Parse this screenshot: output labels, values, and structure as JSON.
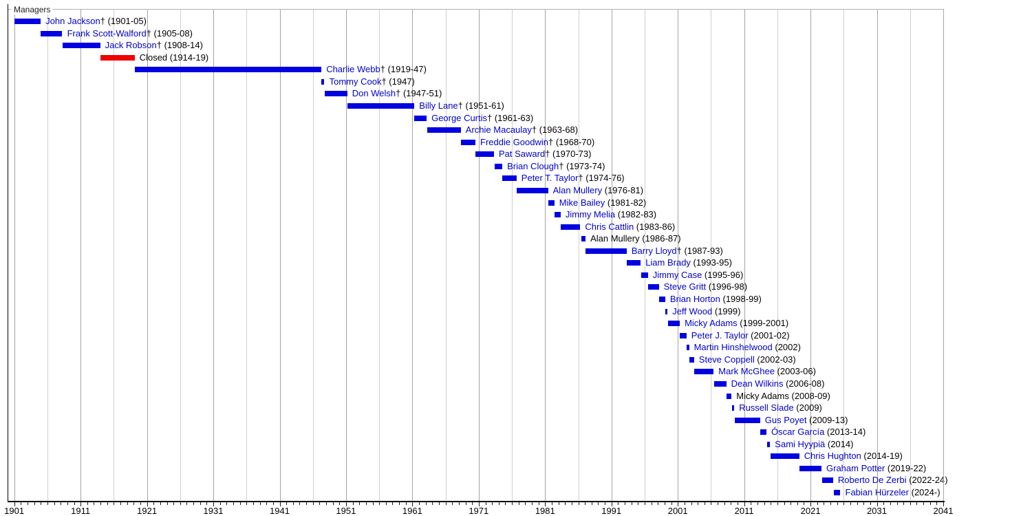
{
  "header": {
    "group_label": "Managers"
  },
  "chart_data": {
    "type": "timeline",
    "title": "Managers",
    "x_axis": {
      "min": 1900,
      "max": 2041,
      "tick_every": 1,
      "gridline_every": 5,
      "label_every": 10,
      "tick_labels": [
        "1901",
        "1911",
        "1921",
        "1931",
        "1941",
        "1951",
        "1961",
        "1971",
        "1981",
        "1991",
        "2001",
        "2011",
        "2021",
        "2031",
        "2041"
      ]
    },
    "colors": {
      "bar": "#0000e0",
      "closed_bar": "#ee0000",
      "link_text": "#0000cc",
      "text": "#000000",
      "grid_major": "#a4a4a4",
      "grid_minor": "#cfcfcf",
      "axis": "#000000"
    },
    "legend_position": "none",
    "grid": true,
    "rows": [
      {
        "name": "John Jackson",
        "dagger": true,
        "years": "1901-05",
        "start": 1901.0,
        "end": 1905.0,
        "color": "blue",
        "link": true
      },
      {
        "name": "Frank Scott-Walford",
        "dagger": true,
        "years": "1905-08",
        "start": 1905.0,
        "end": 1908.25,
        "color": "blue",
        "link": true
      },
      {
        "name": "Jack Robson",
        "dagger": true,
        "years": "1908-14",
        "start": 1908.25,
        "end": 1913.95,
        "color": "blue",
        "link": true
      },
      {
        "name": "Closed",
        "dagger": false,
        "years": "1914-19",
        "start": 1913.95,
        "end": 1919.15,
        "color": "red",
        "link": false
      },
      {
        "name": "Charlie Webb",
        "dagger": true,
        "years": "1919-47",
        "start": 1919.15,
        "end": 1947.3,
        "color": "blue",
        "link": true
      },
      {
        "name": "Tommy Cook",
        "dagger": true,
        "years": "1947",
        "start": 1947.3,
        "end": 1947.75,
        "color": "blue",
        "link": true
      },
      {
        "name": "Don Welsh",
        "dagger": true,
        "years": "1947-51",
        "start": 1947.8,
        "end": 1951.2,
        "color": "blue",
        "link": true
      },
      {
        "name": "Billy Lane",
        "dagger": true,
        "years": "1951-61",
        "start": 1951.2,
        "end": 1961.3,
        "color": "blue",
        "link": true
      },
      {
        "name": "George Curtis",
        "dagger": true,
        "years": "1961-63",
        "start": 1961.3,
        "end": 1963.15,
        "color": "blue",
        "link": true
      },
      {
        "name": "Archie Macaulay",
        "dagger": true,
        "years": "1963-68",
        "start": 1963.2,
        "end": 1968.3,
        "color": "blue",
        "link": true
      },
      {
        "name": "Freddie Goodwin",
        "dagger": true,
        "years": "1968-70",
        "start": 1968.3,
        "end": 1970.5,
        "color": "blue",
        "link": true
      },
      {
        "name": "Pat Saward",
        "dagger": true,
        "years": "1970-73",
        "start": 1970.5,
        "end": 1973.3,
        "color": "blue",
        "link": true
      },
      {
        "name": "Brian Clough",
        "dagger": true,
        "years": "1973-74",
        "start": 1973.4,
        "end": 1974.55,
        "color": "blue",
        "link": true
      },
      {
        "name": "Peter T. Taylor",
        "dagger": true,
        "years": "1974-76",
        "start": 1974.55,
        "end": 1976.7,
        "color": "blue",
        "link": true
      },
      {
        "name": "Alan Mullery",
        "dagger": false,
        "years": "1976-81",
        "start": 1976.7,
        "end": 1981.45,
        "color": "blue",
        "link": true
      },
      {
        "name": "Mike Bailey",
        "dagger": false,
        "years": "1981-82",
        "start": 1981.45,
        "end": 1982.4,
        "color": "blue",
        "link": true
      },
      {
        "name": "Jimmy Melia",
        "dagger": false,
        "years": "1982-83",
        "start": 1982.45,
        "end": 1983.35,
        "color": "blue",
        "link": true
      },
      {
        "name": "Chris Cattlin",
        "dagger": false,
        "years": "1983-86",
        "start": 1983.4,
        "end": 1986.3,
        "color": "blue",
        "link": true
      },
      {
        "name": "Alan Mullery",
        "dagger": false,
        "years": "1986-87",
        "start": 1986.45,
        "end": 1987.1,
        "color": "blue",
        "link": false
      },
      {
        "name": "Barry Lloyd",
        "dagger": true,
        "years": "1987-93",
        "start": 1987.1,
        "end": 1993.3,
        "color": "blue",
        "link": true
      },
      {
        "name": "Liam Brady",
        "dagger": false,
        "years": "1993-95",
        "start": 1993.3,
        "end": 1995.4,
        "color": "blue",
        "link": true
      },
      {
        "name": "Jimmy Case",
        "dagger": false,
        "years": "1995-96",
        "start": 1995.45,
        "end": 1996.5,
        "color": "blue",
        "link": true
      },
      {
        "name": "Steve Gritt",
        "dagger": false,
        "years": "1996-98",
        "start": 1996.5,
        "end": 1998.15,
        "color": "blue",
        "link": true
      },
      {
        "name": "Brian Horton",
        "dagger": false,
        "years": "1998-99",
        "start": 1998.15,
        "end": 1999.1,
        "color": "blue",
        "link": true
      },
      {
        "name": "Jeff Wood",
        "dagger": false,
        "years": "1999",
        "start": 1999.15,
        "end": 1999.45,
        "color": "blue",
        "link": true
      },
      {
        "name": "Micky Adams",
        "dagger": false,
        "years": "1999-2001",
        "start": 1999.5,
        "end": 2001.3,
        "color": "blue",
        "link": true
      },
      {
        "name": "Peter J. Taylor",
        "dagger": false,
        "years": "2001-02",
        "start": 2001.3,
        "end": 2002.3,
        "color": "blue",
        "link": true
      },
      {
        "name": "Martin Hinshelwood",
        "dagger": false,
        "years": "2002",
        "start": 2002.35,
        "end": 2002.7,
        "color": "blue",
        "link": true
      },
      {
        "name": "Steve Coppell",
        "dagger": false,
        "years": "2002-03",
        "start": 2002.75,
        "end": 2003.45,
        "color": "blue",
        "link": true
      },
      {
        "name": "Mark McGhee",
        "dagger": false,
        "years": "2003-06",
        "start": 2003.45,
        "end": 2006.4,
        "color": "blue",
        "link": true
      },
      {
        "name": "Dean Wilkins",
        "dagger": false,
        "years": "2006-08",
        "start": 2006.45,
        "end": 2008.3,
        "color": "blue",
        "link": true
      },
      {
        "name": "Micky Adams",
        "dagger": false,
        "years": "2008-09",
        "start": 2008.35,
        "end": 2009.1,
        "color": "blue",
        "link": false
      },
      {
        "name": "Russell Slade",
        "dagger": false,
        "years": "2009",
        "start": 2009.15,
        "end": 2009.5,
        "color": "blue",
        "link": true
      },
      {
        "name": "Gus Poyet",
        "dagger": false,
        "years": "2009-13",
        "start": 2009.55,
        "end": 2013.4,
        "color": "blue",
        "link": true
      },
      {
        "name": "Óscar García",
        "dagger": false,
        "years": "2013-14",
        "start": 2013.45,
        "end": 2014.35,
        "color": "blue",
        "link": true
      },
      {
        "name": "Sami Hyypiä",
        "dagger": false,
        "years": "2014",
        "start": 2014.45,
        "end": 2014.9,
        "color": "blue",
        "link": true
      },
      {
        "name": "Chris Hughton",
        "dagger": false,
        "years": "2014-19",
        "start": 2014.95,
        "end": 2019.3,
        "color": "blue",
        "link": true
      },
      {
        "name": "Graham Potter",
        "dagger": false,
        "years": "2019-22",
        "start": 2019.35,
        "end": 2022.65,
        "color": "blue",
        "link": true
      },
      {
        "name": "Roberto De Zerbi",
        "dagger": false,
        "years": "2022-24",
        "start": 2022.7,
        "end": 2024.4,
        "color": "blue",
        "link": true
      },
      {
        "name": "Fabian Hürzeler",
        "dagger": false,
        "years": "2024-",
        "start": 2024.5,
        "end": 2025.5,
        "color": "blue",
        "link": true
      }
    ]
  }
}
